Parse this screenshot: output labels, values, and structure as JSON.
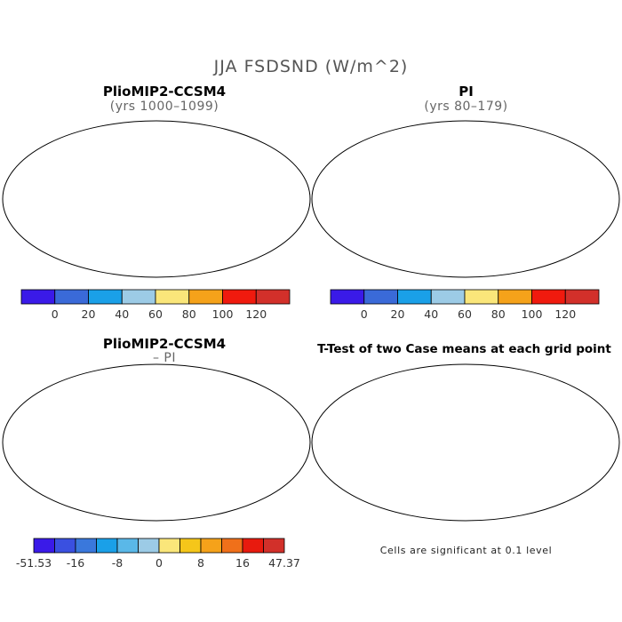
{
  "main_title": "JJA FSDSND (W/m^2)",
  "panels": [
    {
      "title": "PlioMIP2-CCSM4",
      "subtitle": "(yrs 1000–1099)"
    },
    {
      "title": "PI",
      "subtitle": "(yrs 80–179)"
    },
    {
      "title": "PlioMIP2-CCSM4",
      "subtitle": "– PI"
    },
    {
      "title": "T-Test of two Case means at each grid point",
      "subtitle": ""
    }
  ],
  "colorbar_abs": {
    "labels": [
      "0",
      "20",
      "40",
      "60",
      "80",
      "100",
      "120"
    ],
    "colors": [
      "#3a1ae8",
      "#3a6ad8",
      "#1aa0e8",
      "#9ccbe6",
      "#fae67a",
      "#f5a21a",
      "#f01a0e",
      "#d2302a"
    ]
  },
  "colorbar_diff": {
    "labels": [
      "-51.53",
      "-16",
      "-8",
      "0",
      "8",
      "16",
      "47.37"
    ],
    "colors": [
      "#3a1ae8",
      "#3a50e0",
      "#3a78dc",
      "#1aa0e8",
      "#5ab8e8",
      "#9ccbe6",
      "#fae67a",
      "#f5c61a",
      "#f5a21a",
      "#f0701a",
      "#e81a0e",
      "#d2302a"
    ]
  },
  "significance_note": "Cells are significant at 0.1 level",
  "map_colors": {
    "land_hot": "#d2302a",
    "land_warm": "#f01a0e",
    "land_orange": "#f5a21a",
    "land_yellow": "#fae67a",
    "land_light_blue": "#9ccbe6",
    "land_blue": "#3a6ad8",
    "land_mid_blue": "#1aa0e8",
    "land_deep": "#3a1ae8",
    "significant": "#ff0000"
  }
}
